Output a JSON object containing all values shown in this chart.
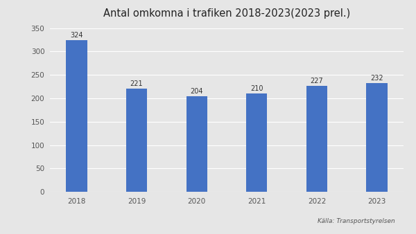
{
  "title": "Antal omkomna i trafiken 2018-2023(2023 prel.)",
  "categories": [
    "2018",
    "2019",
    "2020",
    "2021",
    "2022",
    "2023"
  ],
  "values": [
    324,
    221,
    204,
    210,
    227,
    232
  ],
  "bar_color": "#4472C4",
  "background_color": "#E6E6E6",
  "plot_bg_color": "#E6E6E6",
  "ylim": [
    0,
    350
  ],
  "yticks": [
    0,
    50,
    100,
    150,
    200,
    250,
    300,
    350
  ],
  "source_text": "Källa: Transportstyrelsen",
  "title_fontsize": 10.5,
  "label_fontsize": 7,
  "tick_fontsize": 7.5,
  "source_fontsize": 6.5,
  "bar_width": 0.35
}
